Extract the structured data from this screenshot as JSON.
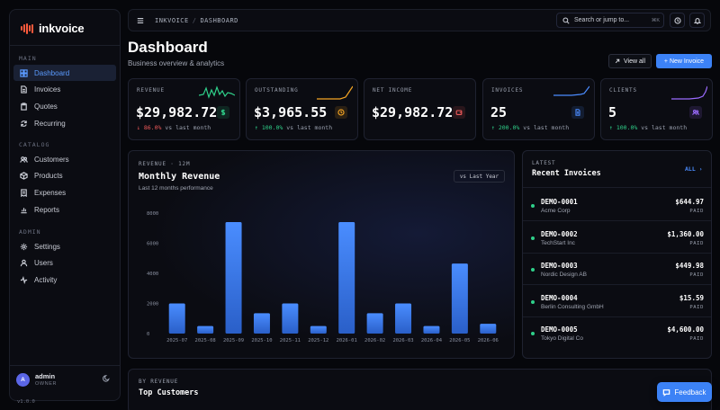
{
  "brand": {
    "name": "inkvoice",
    "accent": "#ff5a3c"
  },
  "sidebar": {
    "sections": [
      {
        "label": "MAIN",
        "items": [
          {
            "label": "Dashboard",
            "icon": "grid-icon",
            "active": true
          },
          {
            "label": "Invoices",
            "icon": "file-icon"
          },
          {
            "label": "Quotes",
            "icon": "clipboard-icon"
          },
          {
            "label": "Recurring",
            "icon": "refresh-icon"
          }
        ]
      },
      {
        "label": "CATALOG",
        "items": [
          {
            "label": "Customers",
            "icon": "users-icon"
          },
          {
            "label": "Products",
            "icon": "box-icon"
          },
          {
            "label": "Expenses",
            "icon": "receipt-icon"
          },
          {
            "label": "Reports",
            "icon": "chart-icon"
          }
        ]
      },
      {
        "label": "ADMIN",
        "items": [
          {
            "label": "Settings",
            "icon": "gear-icon"
          },
          {
            "label": "Users",
            "icon": "user-icon"
          },
          {
            "label": "Activity",
            "icon": "activity-icon"
          }
        ]
      }
    ],
    "user": {
      "initial": "A",
      "name": "admin",
      "role": "OWNER"
    },
    "version": "v1.0.0"
  },
  "topbar": {
    "crumb_root": "INKVOICE",
    "crumb_sep": "/",
    "crumb_current": "DASHBOARD",
    "search_placeholder": "Search or jump to...",
    "search_kbd": "⌘K"
  },
  "header": {
    "title": "Dashboard",
    "subtitle": "Business overview & analytics",
    "view_all": "View all",
    "new_invoice": "+ New Invoice"
  },
  "stats": [
    {
      "label": "REVENUE",
      "value": "$29,982.72",
      "change": "86.0%",
      "direction": "down",
      "suffix": "vs last month",
      "color": "#2fd08a",
      "icon": "dollar-icon"
    },
    {
      "label": "OUTSTANDING",
      "value": "$3,965.55",
      "change": "100.0%",
      "direction": "up",
      "suffix": "vs last month",
      "color": "#f5a524",
      "icon": "clock-icon"
    },
    {
      "label": "NET INCOME",
      "value": "$29,982.72",
      "change": "",
      "direction": "",
      "suffix": "",
      "color": "#f05a5a",
      "icon": "wallet-icon"
    },
    {
      "label": "INVOICES",
      "value": "25",
      "change": "200.0%",
      "direction": "up",
      "suffix": "vs last month",
      "color": "#4b8cff",
      "icon": "document-icon"
    },
    {
      "label": "CLIENTS",
      "value": "5",
      "change": "100.0%",
      "direction": "up",
      "suffix": "vs last month",
      "color": "#9b6bff",
      "icon": "users-icon"
    }
  ],
  "revenue_chart": {
    "eyebrow": "REVENUE · 12M",
    "title": "Monthly Revenue",
    "subtitle": "Last 12 months performance",
    "toggle": "vs Last Year"
  },
  "chart_data": {
    "type": "bar",
    "title": "Monthly Revenue",
    "categories": [
      "2025-07",
      "2025-08",
      "2025-09",
      "2025-10",
      "2025-11",
      "2025-12",
      "2026-01",
      "2026-02",
      "2026-03",
      "2026-04",
      "2026-05",
      "2026-06"
    ],
    "values": [
      2000,
      500,
      7400,
      1350,
      2000,
      500,
      7400,
      1350,
      2000,
      500,
      4650,
      650
    ],
    "ylim": [
      0,
      8000
    ],
    "yticks": [
      "0",
      "2000",
      "4000",
      "6000",
      "8000"
    ],
    "color": "#3c82f6"
  },
  "invoices": {
    "eyebrow": "LATEST",
    "title": "Recent Invoices",
    "all_label": "ALL ›",
    "rows": [
      {
        "id": "DEMO-0001",
        "client": "Acme Corp",
        "amount": "$644.97",
        "status": "PAID"
      },
      {
        "id": "DEMO-0002",
        "client": "TechStart Inc",
        "amount": "$1,360.00",
        "status": "PAID"
      },
      {
        "id": "DEMO-0003",
        "client": "Nordic Design AB",
        "amount": "$449.98",
        "status": "PAID"
      },
      {
        "id": "DEMO-0004",
        "client": "Berlin Consulting GmbH",
        "amount": "$15.59",
        "status": "PAID"
      },
      {
        "id": "DEMO-0005",
        "client": "Tokyo Digital Co",
        "amount": "$4,600.00",
        "status": "PAID"
      }
    ]
  },
  "customers": {
    "eyebrow": "BY REVENUE",
    "title": "Top Customers"
  },
  "feedback": {
    "label": "Feedback"
  }
}
